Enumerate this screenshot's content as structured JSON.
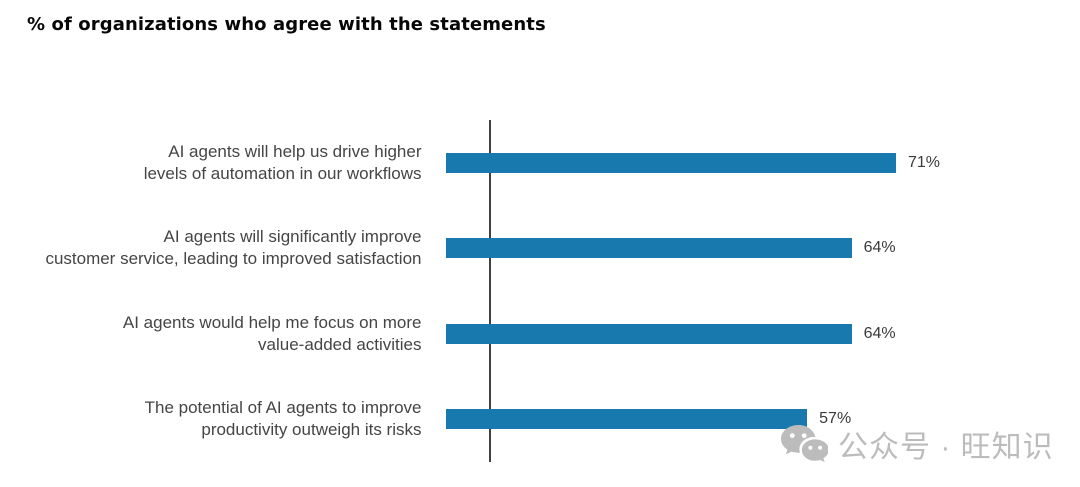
{
  "page": {
    "title": "% of organizations who agree with the statements"
  },
  "chart_data": {
    "type": "bar",
    "orientation": "horizontal",
    "title": "% of organizations who agree with the statements",
    "categories": [
      "AI agents will help us drive higher\nlevels of automation in our workflows",
      "AI agents will significantly improve\ncustomer service, leading to improved satisfaction",
      "AI agents would help me focus on more\nvalue-added activities",
      "The potential of AI agents to improve\nproductivity outweigh its risks"
    ],
    "values": [
      71,
      64,
      64,
      57
    ],
    "value_labels": [
      "71%",
      "64%",
      "64%",
      "57%"
    ],
    "xlim": [
      0,
      100
    ],
    "bar_color": "#1779ad",
    "axis_color": "#414141",
    "label_color": "#454545",
    "grid": false,
    "legend": false,
    "value_label_position": "end-of-bar"
  },
  "watermark": {
    "icon": "wechat-icon",
    "text": "公众号 · 旺知识",
    "color": "#bcbcbc"
  }
}
